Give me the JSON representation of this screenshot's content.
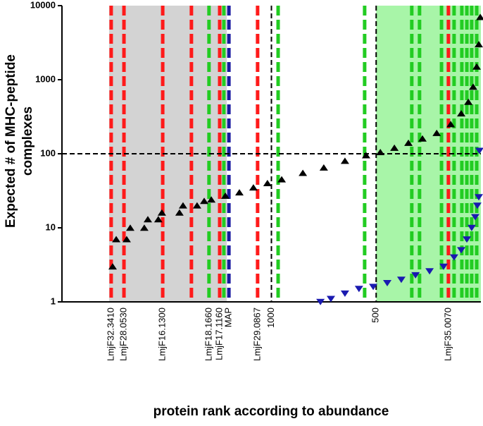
{
  "chart_data": {
    "type": "scatter",
    "ylabel": [
      "Expected # of MHC-peptide",
      "complexes"
    ],
    "xlabel": "protein rank according to abundance",
    "log_y": true,
    "ylim": [
      1,
      10000
    ],
    "yticks": [
      1,
      10,
      100,
      1000,
      10000
    ],
    "xlim": [
      2000,
      0
    ],
    "xticks": [
      1000,
      500
    ],
    "shaded": [
      {
        "x": [
          1775,
          1213
        ],
        "color": "#d3d3d3"
      },
      {
        "x": [
          500,
          0
        ],
        "color": "#a8f5a8"
      }
    ],
    "hlines": [
      {
        "y": 100,
        "color": "#000000"
      }
    ],
    "vlines": [
      {
        "x": 1765,
        "color": "#ff1a1a",
        "label": "LmjF32.3410"
      },
      {
        "x": 1704,
        "color": "#ff1a1a",
        "label": "LmjF28.0530"
      },
      {
        "x": 1519,
        "color": "#ff1a1a",
        "label": "LmjF16.1300"
      },
      {
        "x": 1382,
        "color": "#ff1a1a"
      },
      {
        "x": 1298,
        "color": "#22cc22",
        "label": "LmjF18.1660",
        "label_color": "#1a9a1a"
      },
      {
        "x": 1247,
        "color": "#ff1a1a",
        "label": "LmjF17.1160"
      },
      {
        "x": 1227,
        "color": "#22cc22"
      },
      {
        "x": 1203,
        "color": "#1a1aa0",
        "label": "MAP"
      },
      {
        "x": 1066,
        "color": "#ff1a1a",
        "label": "LmjF29.0867"
      },
      {
        "x": 968,
        "color": "#22cc22"
      },
      {
        "x": 555,
        "color": "#22cc22"
      },
      {
        "x": 330,
        "color": "#22cc22"
      },
      {
        "x": 293,
        "color": "#22cc22"
      },
      {
        "x": 188,
        "color": "#22cc22"
      },
      {
        "x": 155,
        "color": "#ff1a1a",
        "label": "LmjF35.0070"
      },
      {
        "x": 128,
        "color": "#22cc22"
      },
      {
        "x": 91,
        "color": "#22cc22"
      },
      {
        "x": 67,
        "color": "#22cc22"
      },
      {
        "x": 44,
        "color": "#22cc22"
      },
      {
        "x": 20,
        "color": "#22cc22"
      }
    ],
    "series": [
      {
        "marker": "up",
        "color": "#000000",
        "x": [
          1758,
          1741,
          1691,
          1674,
          1607,
          1590,
          1540,
          1523,
          1439,
          1422,
          1355,
          1321,
          1287,
          1220,
          1153,
          1086,
          1019,
          951,
          850,
          750,
          649,
          548,
          480,
          413,
          346,
          279,
          211,
          144,
          94,
          60,
          37,
          20,
          10,
          3
        ],
        "y": [
          3,
          7,
          7,
          10,
          10,
          13,
          13,
          16,
          16,
          20,
          20,
          23,
          24,
          27,
          30,
          35,
          40,
          45,
          55,
          65,
          80,
          95,
          105,
          120,
          140,
          160,
          190,
          250,
          350,
          500,
          800,
          1500,
          3000,
          7000
        ]
      },
      {
        "marker": "down",
        "color": "#1a1ab0",
        "x": [
          766,
          716,
          649,
          582,
          514,
          447,
          380,
          312,
          245,
          178,
          128,
          94,
          67,
          44,
          27,
          17,
          10,
          7
        ],
        "y": [
          1,
          1.1,
          1.3,
          1.5,
          1.6,
          1.8,
          2,
          2.3,
          2.6,
          3,
          4,
          5,
          7,
          10,
          14,
          20,
          26,
          110
        ]
      }
    ]
  }
}
